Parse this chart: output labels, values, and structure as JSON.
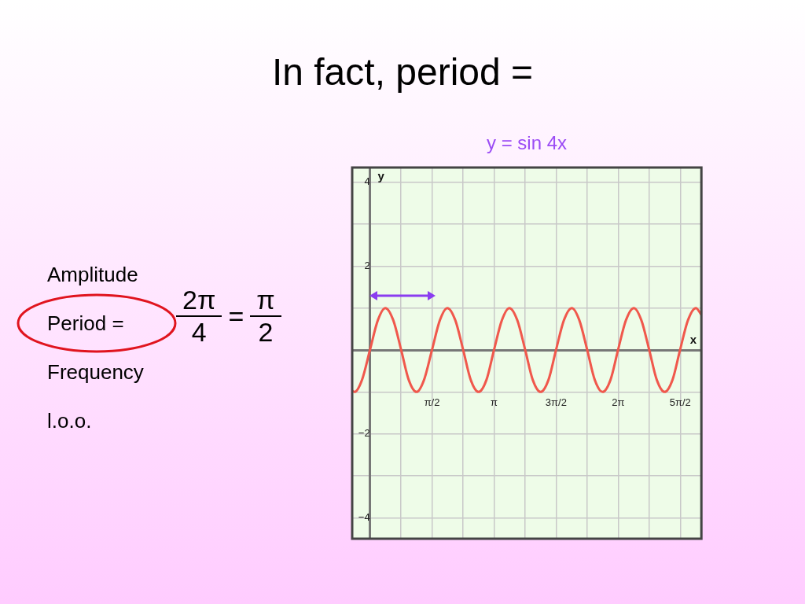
{
  "chart_data": {
    "type": "line",
    "title": "In fact, period =",
    "subtitle": "y = sin 4x",
    "xlabel": "x",
    "ylabel": "y",
    "annotations": [
      "Amplitude",
      "Period =",
      "Frequency",
      "l.o.o.",
      "2π",
      "4",
      "=",
      "π",
      "2"
    ],
    "x": [
      -0.45,
      -0.39,
      -0.2,
      0,
      0.2,
      0.39,
      0.59,
      0.79,
      0.98,
      1.18,
      1.37,
      1.57,
      1.77,
      1.96,
      2.16,
      2.36,
      2.55,
      2.75,
      2.95,
      3.14,
      3.34,
      3.53,
      3.73,
      3.93,
      4.12,
      4.32,
      4.52,
      4.71,
      4.91,
      5.11,
      5.3,
      5.5,
      5.69,
      5.89,
      6.09,
      6.28,
      6.48,
      6.68,
      6.87,
      7.07,
      7.26,
      7.46,
      7.66,
      7.85,
      8.05,
      8.25,
      8.39
    ],
    "series": [
      {
        "color": "#f0584c",
        "values": [
          -0.97,
          -1,
          -0.71,
          0,
          0.71,
          1,
          0.71,
          0,
          -0.71,
          -1,
          -0.71,
          0,
          0.71,
          1,
          0.71,
          0,
          -0.71,
          -1,
          -0.71,
          0,
          0.71,
          1,
          0.71,
          0,
          -0.71,
          -1,
          -0.71,
          0,
          0.71,
          1,
          0.71,
          0,
          -0.71,
          -1,
          -0.71,
          0,
          0.71,
          1,
          0.71,
          0,
          -0.71,
          -1,
          -0.71,
          0,
          0.71,
          1,
          0.84
        ]
      }
    ],
    "xlim": [
      -0.45,
      8.39
    ],
    "ylim": [
      -4.5,
      4.35
    ],
    "xticks": [
      {
        "value": 0,
        "label": null
      },
      {
        "value": 0.785,
        "label": null
      },
      {
        "value": 1.571,
        "label": "π/2"
      },
      {
        "value": 2.356,
        "label": null
      },
      {
        "value": 3.142,
        "label": "π"
      },
      {
        "value": 3.927,
        "label": null
      },
      {
        "value": 4.712,
        "label": "3π/2"
      },
      {
        "value": 5.498,
        "label": null
      },
      {
        "value": 6.283,
        "label": "2π"
      },
      {
        "value": 7.069,
        "label": null
      },
      {
        "value": 7.854,
        "label": "5π/2"
      }
    ],
    "yticks": [
      {
        "value": -4,
        "label": "−4"
      },
      {
        "value": -3,
        "label": null
      },
      {
        "value": -2,
        "label": "−2"
      },
      {
        "value": -1,
        "label": null
      },
      {
        "value": 0,
        "label": null
      },
      {
        "value": 1,
        "label": null
      },
      2,
      {
        "value": 3,
        "label": null
      },
      4
    ],
    "grid": true,
    "marker": "none"
  }
}
